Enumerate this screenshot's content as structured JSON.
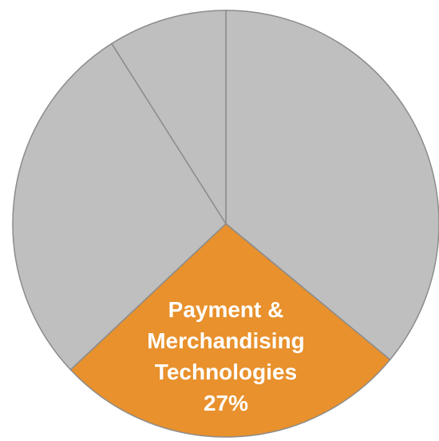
{
  "chart_data": {
    "type": "pie",
    "categories": [
      null,
      "Payment & Merchandising Technologies",
      null,
      null
    ],
    "values": [
      36,
      27,
      28,
      9
    ],
    "value_labels": [
      null,
      "27%",
      null,
      null
    ],
    "colors": [
      "#bfbfbf",
      "#e8912d",
      "#bfbfbf",
      "#bfbfbf"
    ]
  }
}
